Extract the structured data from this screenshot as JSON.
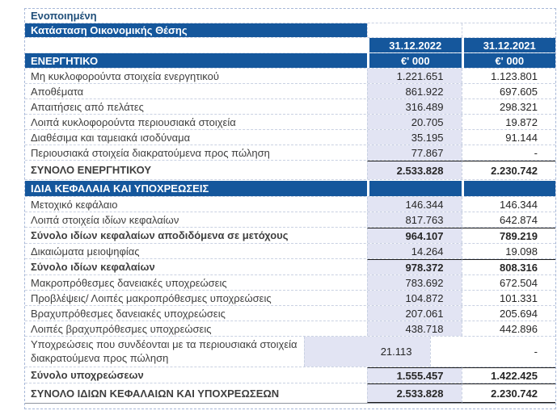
{
  "header": {
    "scope": "Ενοποιημένη",
    "title": "Κατάσταση Οικονομικής Θέσης"
  },
  "columns": [
    {
      "date": "31.12.2022",
      "unit": "€' 000"
    },
    {
      "date": "31.12.2021",
      "unit": "€' 000"
    }
  ],
  "sections": [
    {
      "header": "ΕΝΕΡΓΗΤΙΚΟ",
      "rows": [
        {
          "label": "Μη κυκλοφορούντα στοιχεία ενεργητικού",
          "values": [
            "1.221.651",
            "1.123.801"
          ],
          "type": "normal"
        },
        {
          "label": "Αποθέματα",
          "values": [
            "861.922",
            "697.605"
          ],
          "type": "normal"
        },
        {
          "label": "Απαιτήσεις από πελάτες",
          "values": [
            "316.489",
            "298.321"
          ],
          "type": "normal"
        },
        {
          "label": "Λοιπά κυκλοφορούντα περιουσιακά στοιχεία",
          "values": [
            "20.705",
            "19.872"
          ],
          "type": "normal"
        },
        {
          "label": "Διαθέσιμα και ταμειακά ισοδύναμα",
          "values": [
            "35.195",
            "91.144"
          ],
          "type": "normal"
        },
        {
          "label": "Περιουσιακά στοιχεία διακρατούμενα προς πώληση",
          "values": [
            "77.867",
            "-"
          ],
          "type": "normal"
        },
        {
          "label": "ΣΥΝΟΛΟ ΕΝΕΡΓΗΤΙΚΟΥ",
          "values": [
            "2.533.828",
            "2.230.742"
          ],
          "type": "total"
        }
      ]
    },
    {
      "header": "ΙΔΙΑ ΚΕΦΑΛΑΙΑ ΚΑΙ ΥΠΟΧΡΕΩΣΕΙΣ",
      "rows": [
        {
          "label": "Μετοχικό κεφάλαιο",
          "values": [
            "146.344",
            "146.344"
          ],
          "type": "normal"
        },
        {
          "label": "Λοιπά στοιχεία ιδίων κεφαλαίων",
          "values": [
            "817.763",
            "642.874"
          ],
          "type": "normal"
        },
        {
          "label": "Σύνολο ιδίων κεφαλαίων αποδιδόμενα σε μετόχους",
          "values": [
            "964.107",
            "789.219"
          ],
          "type": "subtotal"
        },
        {
          "label": "Δικαιώματα μειοψηφίας",
          "values": [
            "14.264",
            "19.098"
          ],
          "type": "normal"
        },
        {
          "label": "Σύνολο ιδίων κεφαλαίων",
          "values": [
            "978.372",
            "808.316"
          ],
          "type": "subtotal"
        },
        {
          "label": "Μακροπρόθεσμες δανειακές υποχρεώσεις",
          "values": [
            "783.692",
            "672.504"
          ],
          "type": "normal"
        },
        {
          "label": "Προβλέψεις/ Λοιπές μακροπρόθεσμες υποχρεώσεις",
          "values": [
            "104.872",
            "101.331"
          ],
          "type": "normal"
        },
        {
          "label": "Βραχυπρόθεσμες δανειακές υποχρεώσεις",
          "values": [
            "207.061",
            "205.694"
          ],
          "type": "normal"
        },
        {
          "label": "Λοιπές βραχυπρόθεσμες υποχρεώσεις",
          "values": [
            "438.718",
            "442.896"
          ],
          "type": "normal"
        },
        {
          "label": "Υποχρεώσεις που συνδέονται με τα περιουσιακά στοιχεία διακρατούμενα προς πώληση",
          "values": [
            "21.113",
            "-"
          ],
          "type": "tall"
        },
        {
          "label": "Σύνολο υποχρεώσεων",
          "values": [
            "1.555.457",
            "1.422.425"
          ],
          "type": "subtotal"
        },
        {
          "label": "ΣΥΝΟΛΟ ΙΔΙΩΝ ΚΕΦΑΛΑΙΩΝ ΚΑΙ ΥΠΟΧΡΕΩΣΕΩΝ",
          "values": [
            "2.533.828",
            "2.230.742"
          ],
          "type": "grandtotal"
        }
      ]
    }
  ],
  "colors": {
    "header_blue": "#15579c",
    "column_band_lavender": "#e2e4f3",
    "title_text_blue": "#1f4e79"
  }
}
